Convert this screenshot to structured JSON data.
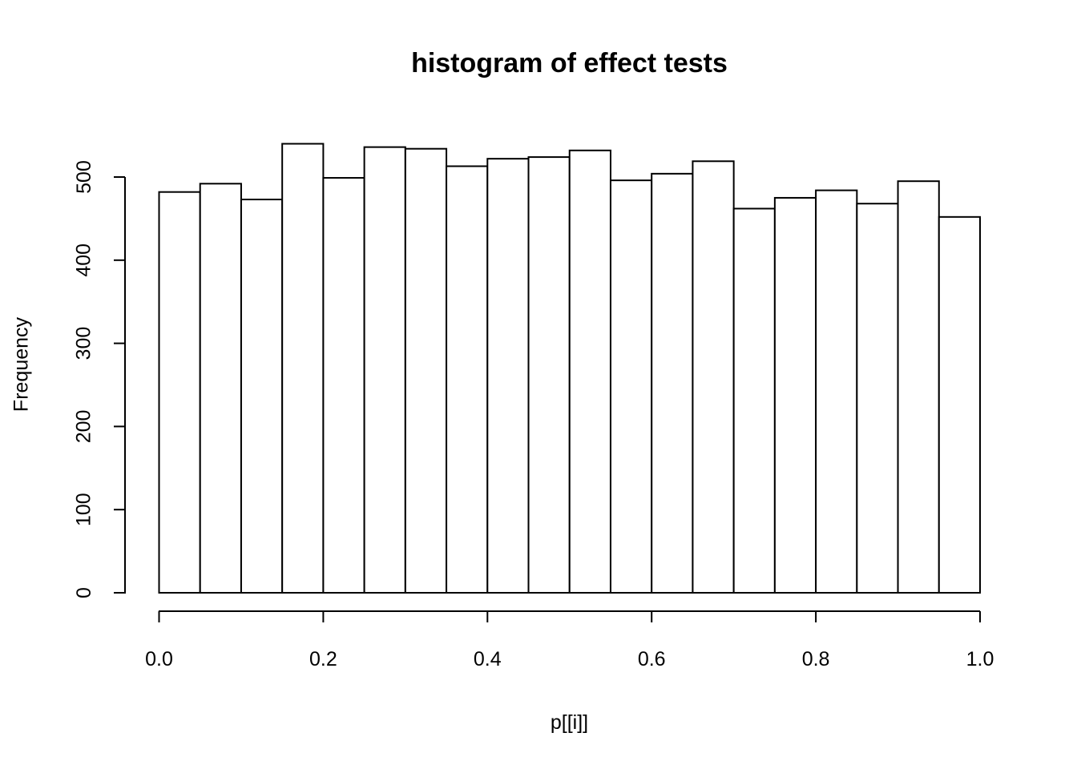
{
  "chart_data": {
    "type": "bar",
    "subtype": "histogram",
    "title": "histogram of effect tests",
    "xlabel": "p[[i]]",
    "ylabel": "Frequency",
    "bin_edges": [
      0.0,
      0.05,
      0.1,
      0.15,
      0.2,
      0.25,
      0.3,
      0.35,
      0.4,
      0.45,
      0.5,
      0.55,
      0.6,
      0.65,
      0.7,
      0.75,
      0.8,
      0.85,
      0.9,
      0.95,
      1.0
    ],
    "counts": [
      482,
      492,
      473,
      540,
      499,
      536,
      534,
      513,
      522,
      524,
      532,
      496,
      504,
      519,
      462,
      475,
      484,
      468,
      495,
      452
    ],
    "xlim": [
      0.0,
      1.0
    ],
    "ylim": [
      0,
      540
    ],
    "xticks": {
      "values": [
        0.0,
        0.2,
        0.4,
        0.6,
        0.8,
        1.0
      ],
      "labels": [
        "0.0",
        "0.2",
        "0.4",
        "0.6",
        "0.8",
        "1.0"
      ]
    },
    "yticks": {
      "values": [
        0,
        100,
        200,
        300,
        400,
        500
      ],
      "labels": [
        "0",
        "100",
        "200",
        "300",
        "400",
        "500"
      ]
    },
    "grid": false,
    "legend": null,
    "bar_fill": "#ffffff",
    "bar_stroke": "#000000",
    "axis_color": "#000000",
    "text_color": "#000000",
    "background": "#ffffff"
  }
}
